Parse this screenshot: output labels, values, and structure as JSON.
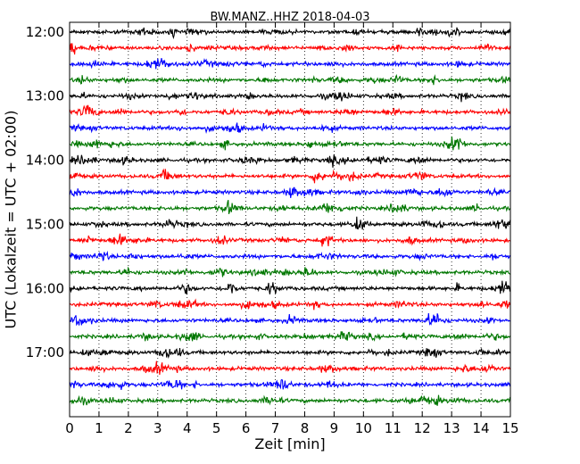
{
  "chart_data": {
    "type": "line",
    "title": "BW.MANZ..HHZ 2018-04-03",
    "xlabel": "Zeit  [min]",
    "ylabel": "UTC (Lokalzeit = UTC + 02:00)",
    "xlim": [
      0,
      15
    ],
    "x_ticks": [
      0,
      1,
      2,
      3,
      4,
      5,
      6,
      7,
      8,
      9,
      10,
      11,
      12,
      13,
      14,
      15
    ],
    "x_tick_labels": [
      "0",
      "1",
      "2",
      "3",
      "4",
      "5",
      "6",
      "7",
      "8",
      "9",
      "10",
      "11",
      "12",
      "13",
      "14",
      "15"
    ],
    "y_axis_inverted": true,
    "ylim_hours": [
      11.85,
      18.0
    ],
    "y_ticks_hours": [
      12,
      13,
      14,
      15,
      16,
      17
    ],
    "y_tick_labels": [
      "12:00",
      "13:00",
      "14:00",
      "15:00",
      "16:00",
      "17:00"
    ],
    "grid": "vertical dotted lines at each minute",
    "trace_interval_minutes": 15,
    "color_cycle": [
      "#000000",
      "#ff0000",
      "#0000ff",
      "#007700"
    ],
    "traces": [
      {
        "start_utc": "12:00"
      },
      {
        "start_utc": "12:15"
      },
      {
        "start_utc": "12:30"
      },
      {
        "start_utc": "12:45"
      },
      {
        "start_utc": "13:00"
      },
      {
        "start_utc": "13:15"
      },
      {
        "start_utc": "13:30"
      },
      {
        "start_utc": "13:45"
      },
      {
        "start_utc": "14:00"
      },
      {
        "start_utc": "14:15"
      },
      {
        "start_utc": "14:30"
      },
      {
        "start_utc": "14:45"
      },
      {
        "start_utc": "15:00"
      },
      {
        "start_utc": "15:15"
      },
      {
        "start_utc": "15:30"
      },
      {
        "start_utc": "15:45"
      },
      {
        "start_utc": "16:00"
      },
      {
        "start_utc": "16:15"
      },
      {
        "start_utc": "16:30"
      },
      {
        "start_utc": "16:45"
      },
      {
        "start_utc": "17:00"
      },
      {
        "start_utc": "17:15"
      },
      {
        "start_utc": "17:30"
      },
      {
        "start_utc": "17:45"
      }
    ]
  }
}
